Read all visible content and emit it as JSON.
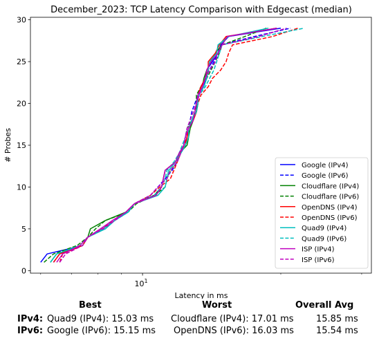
{
  "chart_data": {
    "type": "line",
    "title": "December_2023: TCP Latency Comparison with Edgecast (median)",
    "xlabel": "Latency in ms",
    "ylabel": "# Probes",
    "xscale": "log",
    "xlim": [
      5.7,
      31.5
    ],
    "ylim": [
      -0.3,
      30.3
    ],
    "yticks": [
      0,
      5,
      10,
      15,
      20,
      25,
      30
    ],
    "xticks": [
      {
        "value": 10,
        "base": "10",
        "exp": "1"
      }
    ],
    "grid": false,
    "legend_position": "lower-right",
    "series": [
      {
        "name": "Google (IPv4)",
        "color": "#0000ff",
        "dash": "solid",
        "points": [
          [
            6.0,
            1
          ],
          [
            6.2,
            2
          ],
          [
            7.4,
            3
          ],
          [
            7.6,
            4
          ],
          [
            8.2,
            5
          ],
          [
            8.7,
            6
          ],
          [
            9.3,
            7
          ],
          [
            9.6,
            8
          ],
          [
            10.6,
            9
          ],
          [
            11.0,
            10
          ],
          [
            11.1,
            11
          ],
          [
            11.2,
            12
          ],
          [
            11.8,
            13
          ],
          [
            12.1,
            14
          ],
          [
            12.4,
            15
          ],
          [
            12.5,
            16
          ],
          [
            12.6,
            17
          ],
          [
            12.8,
            18
          ],
          [
            13.1,
            19
          ],
          [
            13.2,
            20
          ],
          [
            13.2,
            21
          ],
          [
            13.6,
            22
          ],
          [
            13.7,
            23
          ],
          [
            13.8,
            24
          ],
          [
            14.2,
            25
          ],
          [
            14.6,
            26
          ],
          [
            14.8,
            27
          ],
          [
            15.4,
            28
          ],
          [
            20.0,
            29
          ]
        ]
      },
      {
        "name": "Google (IPv6)",
        "color": "#0000ff",
        "dash": "dashed",
        "points": [
          [
            6.4,
            1
          ],
          [
            6.6,
            2
          ],
          [
            7.4,
            3
          ],
          [
            7.6,
            4
          ],
          [
            8.2,
            5
          ],
          [
            8.7,
            6
          ],
          [
            9.3,
            7
          ],
          [
            9.6,
            8
          ],
          [
            10.4,
            9
          ],
          [
            10.8,
            10
          ],
          [
            11.2,
            11
          ],
          [
            11.6,
            12
          ],
          [
            11.9,
            13
          ],
          [
            12.1,
            14
          ],
          [
            12.3,
            15
          ],
          [
            12.4,
            16
          ],
          [
            12.5,
            17
          ],
          [
            12.7,
            18
          ],
          [
            12.8,
            19
          ],
          [
            13.0,
            20
          ],
          [
            13.2,
            21
          ],
          [
            13.4,
            22
          ],
          [
            13.7,
            23
          ],
          [
            14.0,
            24
          ],
          [
            14.3,
            25
          ],
          [
            14.6,
            26
          ],
          [
            14.8,
            27
          ],
          [
            17.5,
            28
          ],
          [
            21.0,
            29
          ]
        ]
      },
      {
        "name": "Cloudflare (IPv4)",
        "color": "#008000",
        "dash": "solid",
        "points": [
          [
            6.3,
            1
          ],
          [
            6.5,
            2
          ],
          [
            7.4,
            3
          ],
          [
            7.6,
            4
          ],
          [
            7.7,
            5
          ],
          [
            8.3,
            6
          ],
          [
            9.2,
            7
          ],
          [
            9.6,
            8
          ],
          [
            10.6,
            9
          ],
          [
            11.0,
            10
          ],
          [
            11.1,
            11
          ],
          [
            11.2,
            12
          ],
          [
            11.8,
            13
          ],
          [
            12.0,
            14
          ],
          [
            12.5,
            15
          ],
          [
            12.6,
            16
          ],
          [
            12.7,
            17
          ],
          [
            12.9,
            18
          ],
          [
            13.1,
            19
          ],
          [
            13.1,
            20
          ],
          [
            13.2,
            21
          ],
          [
            13.5,
            22
          ],
          [
            13.6,
            23
          ],
          [
            13.8,
            24
          ],
          [
            14.1,
            25
          ],
          [
            14.4,
            26
          ],
          [
            14.9,
            27
          ],
          [
            15.3,
            28
          ],
          [
            19.6,
            29
          ]
        ]
      },
      {
        "name": "Cloudflare (IPv6)",
        "color": "#008000",
        "dash": "dashed",
        "points": [
          [
            6.1,
            1
          ],
          [
            6.4,
            2
          ],
          [
            7.2,
            3
          ],
          [
            7.6,
            4
          ],
          [
            7.9,
            5
          ],
          [
            8.3,
            6
          ],
          [
            9.3,
            7
          ],
          [
            9.7,
            8
          ],
          [
            10.6,
            9
          ],
          [
            11.2,
            10
          ],
          [
            11.3,
            11
          ],
          [
            11.5,
            12
          ],
          [
            11.9,
            13
          ],
          [
            12.0,
            14
          ],
          [
            12.3,
            15
          ],
          [
            12.4,
            16
          ],
          [
            12.5,
            17
          ],
          [
            12.8,
            18
          ],
          [
            13.0,
            19
          ],
          [
            13.1,
            20
          ],
          [
            13.1,
            21
          ],
          [
            13.4,
            22
          ],
          [
            13.8,
            23
          ],
          [
            14.1,
            24
          ],
          [
            14.4,
            25
          ],
          [
            14.7,
            26
          ],
          [
            14.9,
            27
          ],
          [
            16.7,
            28
          ],
          [
            18.6,
            29
          ]
        ]
      },
      {
        "name": "OpenDNS (IPv4)",
        "color": "#ff0000",
        "dash": "solid",
        "points": [
          [
            6.4,
            1
          ],
          [
            6.6,
            2
          ],
          [
            7.4,
            3
          ],
          [
            7.6,
            4
          ],
          [
            8.2,
            5
          ],
          [
            8.7,
            6
          ],
          [
            9.2,
            7
          ],
          [
            9.6,
            8
          ],
          [
            10.7,
            9
          ],
          [
            11.0,
            10
          ],
          [
            11.1,
            11
          ],
          [
            11.2,
            12
          ],
          [
            11.8,
            13
          ],
          [
            12.0,
            14
          ],
          [
            12.4,
            15
          ],
          [
            12.5,
            16
          ],
          [
            12.6,
            17
          ],
          [
            12.9,
            18
          ],
          [
            13.1,
            19
          ],
          [
            13.2,
            20
          ],
          [
            13.2,
            21
          ],
          [
            13.4,
            22
          ],
          [
            13.7,
            23
          ],
          [
            13.9,
            24
          ],
          [
            13.9,
            25
          ],
          [
            14.4,
            26
          ],
          [
            14.7,
            27
          ],
          [
            15.2,
            28
          ],
          [
            19.6,
            29
          ]
        ]
      },
      {
        "name": "OpenDNS (IPv6)",
        "color": "#ff0000",
        "dash": "dashed",
        "points": [
          [
            6.6,
            1
          ],
          [
            6.7,
            2
          ],
          [
            7.4,
            3
          ],
          [
            7.6,
            4
          ],
          [
            8.1,
            5
          ],
          [
            8.7,
            6
          ],
          [
            9.2,
            7
          ],
          [
            9.6,
            8
          ],
          [
            10.4,
            9
          ],
          [
            10.9,
            10
          ],
          [
            11.5,
            11
          ],
          [
            11.7,
            12
          ],
          [
            11.9,
            13
          ],
          [
            12.1,
            14
          ],
          [
            12.3,
            15
          ],
          [
            12.5,
            16
          ],
          [
            12.6,
            17
          ],
          [
            12.8,
            18
          ],
          [
            13.1,
            19
          ],
          [
            13.2,
            20
          ],
          [
            13.4,
            21
          ],
          [
            13.9,
            22
          ],
          [
            14.2,
            23
          ],
          [
            14.8,
            24
          ],
          [
            15.2,
            25
          ],
          [
            15.4,
            26
          ],
          [
            15.7,
            27
          ],
          [
            19.2,
            28
          ],
          [
            21.8,
            29
          ]
        ]
      },
      {
        "name": "Quad9 (IPv4)",
        "color": "#00bfbf",
        "dash": "solid",
        "points": [
          [
            6.3,
            1
          ],
          [
            6.5,
            2
          ],
          [
            7.3,
            3
          ],
          [
            7.6,
            4
          ],
          [
            8.3,
            5
          ],
          [
            8.7,
            6
          ],
          [
            9.3,
            7
          ],
          [
            9.6,
            8
          ],
          [
            10.8,
            9
          ],
          [
            11.2,
            10
          ],
          [
            11.3,
            11
          ],
          [
            11.4,
            12
          ],
          [
            11.8,
            13
          ],
          [
            12.1,
            14
          ],
          [
            12.4,
            15
          ],
          [
            12.6,
            16
          ],
          [
            12.6,
            17
          ],
          [
            12.8,
            18
          ],
          [
            13.1,
            19
          ],
          [
            13.2,
            20
          ],
          [
            13.2,
            21
          ],
          [
            13.6,
            22
          ],
          [
            13.8,
            23
          ],
          [
            13.9,
            24
          ],
          [
            14.0,
            25
          ],
          [
            14.5,
            26
          ],
          [
            14.6,
            27
          ],
          [
            15.4,
            28
          ],
          [
            18.8,
            29
          ]
        ]
      },
      {
        "name": "Quad9 (IPv6)",
        "color": "#00bfbf",
        "dash": "dashed",
        "points": [
          [
            6.3,
            1
          ],
          [
            6.5,
            2
          ],
          [
            7.3,
            3
          ],
          [
            7.6,
            4
          ],
          [
            8.2,
            5
          ],
          [
            8.7,
            6
          ],
          [
            9.3,
            7
          ],
          [
            9.6,
            8
          ],
          [
            10.6,
            9
          ],
          [
            11.0,
            10
          ],
          [
            11.2,
            11
          ],
          [
            11.3,
            12
          ],
          [
            11.7,
            13
          ],
          [
            12.0,
            14
          ],
          [
            12.2,
            15
          ],
          [
            12.4,
            16
          ],
          [
            12.6,
            17
          ],
          [
            12.8,
            18
          ],
          [
            13.0,
            19
          ],
          [
            13.1,
            20
          ],
          [
            13.3,
            21
          ],
          [
            13.7,
            22
          ],
          [
            14.0,
            23
          ],
          [
            14.3,
            24
          ],
          [
            14.5,
            25
          ],
          [
            14.7,
            26
          ],
          [
            14.9,
            27
          ],
          [
            18.2,
            28
          ],
          [
            22.5,
            29
          ]
        ]
      },
      {
        "name": "ISP (IPv4)",
        "color": "#bf00bf",
        "dash": "solid",
        "points": [
          [
            6.5,
            1
          ],
          [
            6.7,
            2
          ],
          [
            7.3,
            3
          ],
          [
            7.6,
            4
          ],
          [
            8.1,
            5
          ],
          [
            8.6,
            6
          ],
          [
            9.2,
            7
          ],
          [
            9.6,
            8
          ],
          [
            10.7,
            9
          ],
          [
            11.0,
            10
          ],
          [
            11.1,
            11
          ],
          [
            11.2,
            12
          ],
          [
            11.8,
            13
          ],
          [
            12.0,
            14
          ],
          [
            12.3,
            15
          ],
          [
            12.4,
            16
          ],
          [
            12.6,
            17
          ],
          [
            12.9,
            18
          ],
          [
            13.0,
            19
          ],
          [
            13.1,
            20
          ],
          [
            13.2,
            21
          ],
          [
            13.5,
            22
          ],
          [
            13.7,
            23
          ],
          [
            13.8,
            24
          ],
          [
            14.1,
            25
          ],
          [
            14.6,
            26
          ],
          [
            14.9,
            27
          ],
          [
            15.3,
            28
          ],
          [
            19.6,
            29
          ]
        ]
      },
      {
        "name": "ISP (IPv6)",
        "color": "#bf00bf",
        "dash": "dashed",
        "points": [
          [
            6.6,
            1
          ],
          [
            6.8,
            2
          ],
          [
            7.4,
            3
          ],
          [
            7.6,
            4
          ],
          [
            8.2,
            5
          ],
          [
            8.7,
            6
          ],
          [
            9.2,
            7
          ],
          [
            9.6,
            8
          ],
          [
            10.4,
            9
          ],
          [
            10.8,
            10
          ],
          [
            11.3,
            11
          ],
          [
            11.5,
            12
          ],
          [
            11.9,
            13
          ],
          [
            12.1,
            14
          ],
          [
            12.3,
            15
          ],
          [
            12.4,
            16
          ],
          [
            12.5,
            17
          ],
          [
            12.7,
            18
          ],
          [
            12.9,
            19
          ],
          [
            13.1,
            20
          ],
          [
            13.3,
            21
          ],
          [
            13.5,
            22
          ],
          [
            13.7,
            23
          ],
          [
            14.0,
            24
          ],
          [
            14.4,
            25
          ],
          [
            14.6,
            26
          ],
          [
            14.9,
            27
          ],
          [
            17.9,
            28
          ],
          [
            20.6,
            29
          ]
        ]
      }
    ]
  },
  "stats_table": {
    "headers": {
      "best": "Best",
      "worst": "Worst",
      "avg": "Overall Avg"
    },
    "rows": [
      {
        "label": "IPv4:",
        "best": "Quad9 (IPv4): 15.03 ms",
        "worst": "Cloudflare (IPv4): 17.01 ms",
        "avg": "15.85 ms"
      },
      {
        "label": "IPv6:",
        "best": "Google (IPv6): 15.15 ms",
        "worst": "OpenDNS (IPv6): 16.03 ms",
        "avg": "15.54 ms"
      }
    ]
  }
}
